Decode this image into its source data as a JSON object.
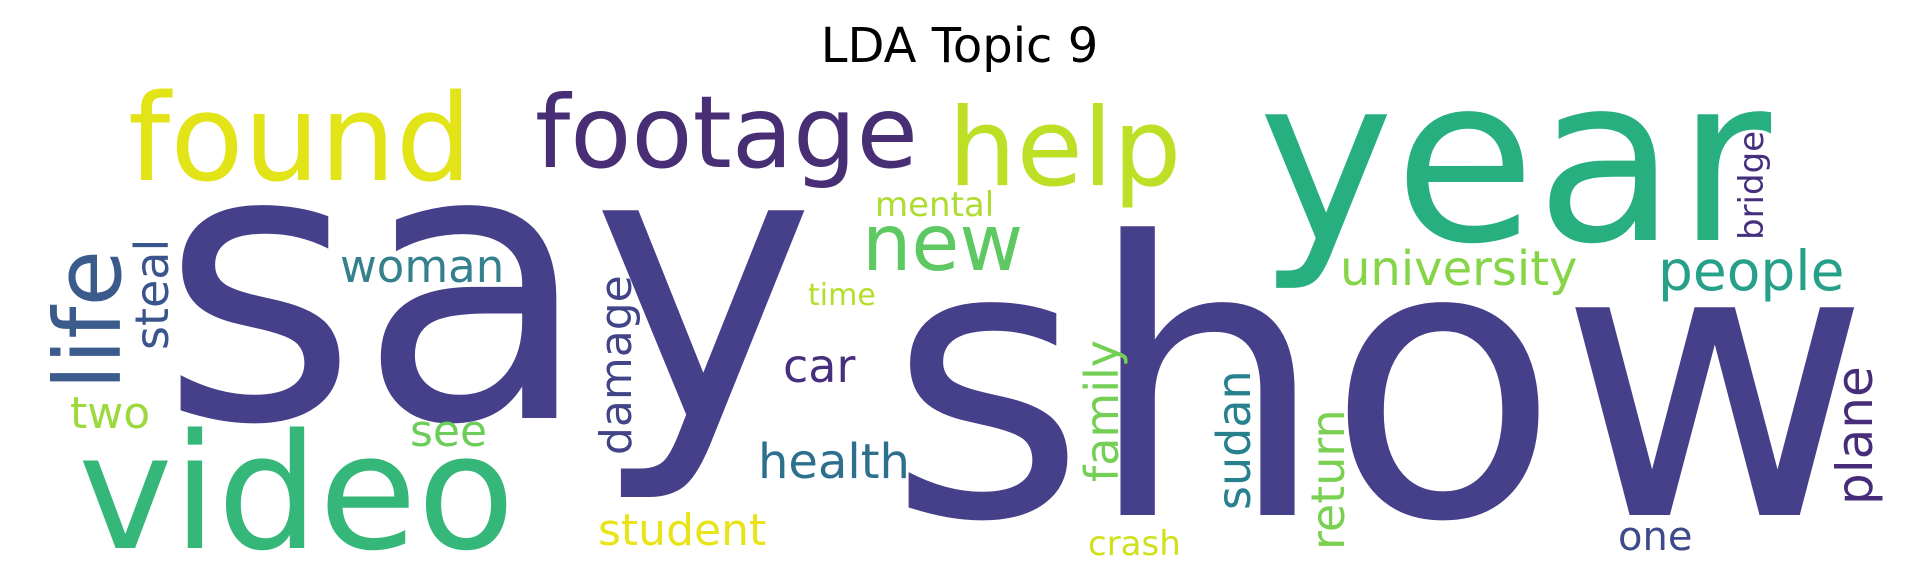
{
  "title": "LDA Topic 9",
  "words": [
    {
      "text": "say",
      "color": "#46408a"
    },
    {
      "text": "show",
      "color": "#46408a"
    },
    {
      "text": "year",
      "color": "#28af7f"
    },
    {
      "text": "video",
      "color": "#35b779"
    },
    {
      "text": "found",
      "color": "#e2e418"
    },
    {
      "text": "footage",
      "color": "#482e74"
    },
    {
      "text": "help",
      "color": "#bddf26"
    },
    {
      "text": "new",
      "color": "#5ec962"
    },
    {
      "text": "life",
      "color": "#3b5b8c"
    },
    {
      "text": "people",
      "color": "#27a08a"
    },
    {
      "text": "university",
      "color": "#86d549"
    },
    {
      "text": "woman",
      "color": "#35808d"
    },
    {
      "text": "mental",
      "color": "#aedc30"
    },
    {
      "text": "steal",
      "color": "#3a548c"
    },
    {
      "text": "time",
      "color": "#b5de2b"
    },
    {
      "text": "bridge",
      "color": "#46307e"
    },
    {
      "text": "damage",
      "color": "#414487"
    },
    {
      "text": "car",
      "color": "#472f7d"
    },
    {
      "text": "family",
      "color": "#74d055"
    },
    {
      "text": "sudan",
      "color": "#27808e"
    },
    {
      "text": "return",
      "color": "#7ad151"
    },
    {
      "text": "plane",
      "color": "#472c7a"
    },
    {
      "text": "two",
      "color": "#9bd93c"
    },
    {
      "text": "see",
      "color": "#6ccd5a"
    },
    {
      "text": "health",
      "color": "#2d708e"
    },
    {
      "text": "student",
      "color": "#e8e419"
    },
    {
      "text": "crash",
      "color": "#d0e11c"
    },
    {
      "text": "one",
      "color": "#3e4a89"
    }
  ]
}
